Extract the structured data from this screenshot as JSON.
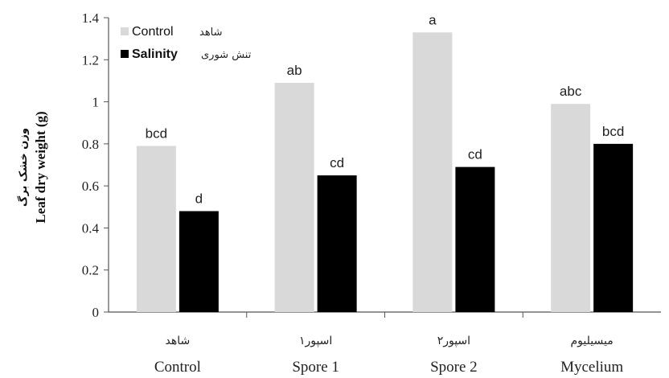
{
  "chart_data": {
    "type": "bar",
    "categories": [
      "Control",
      "Spore 1",
      "Spore 2",
      "Mycelium"
    ],
    "categories_fa": [
      "شاهد",
      "اسپور۱",
      "اسپور۲",
      "میسیلیوم"
    ],
    "series": [
      {
        "name": "Control",
        "name_fa": "شاهد",
        "color": "#d9d9d9",
        "values": [
          0.79,
          1.09,
          1.33,
          0.99
        ],
        "labels": [
          "bcd",
          "ab",
          "a",
          "abc"
        ]
      },
      {
        "name": "Salinity",
        "name_fa": "تنش شوری",
        "color": "#000000",
        "values": [
          0.48,
          0.65,
          0.69,
          0.8
        ],
        "labels": [
          "d",
          "cd",
          "cd",
          "bcd"
        ]
      }
    ],
    "ylabel": "Leaf dry weight (g)",
    "ylabel_fa": "وزن خشک برگ",
    "xlabel": "",
    "ylim": [
      0,
      1.4
    ],
    "yticks": [
      "0",
      "0.2",
      "0.4",
      "0.6",
      "0.8",
      "1",
      "1.2",
      "1.4"
    ],
    "legend_position": "top-left",
    "grid": false
  }
}
